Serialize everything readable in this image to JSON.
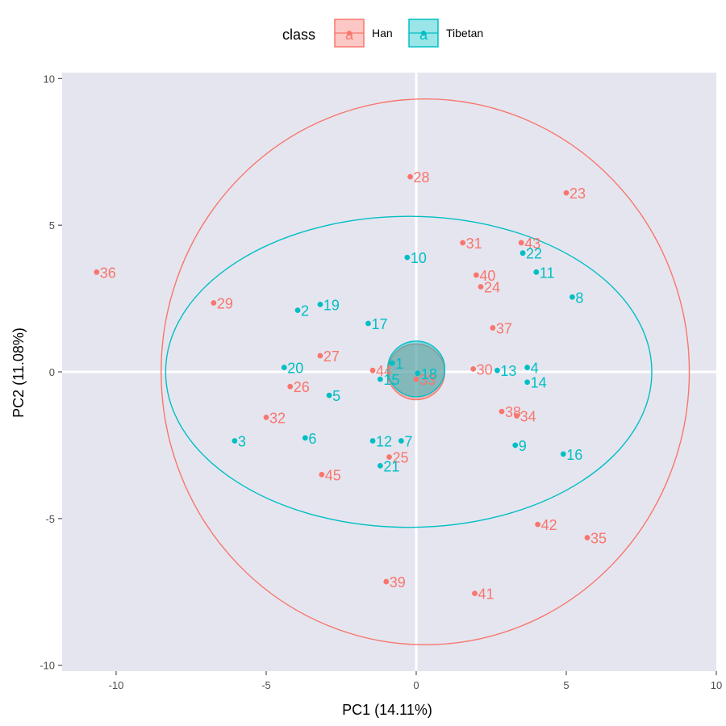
{
  "chart_data": {
    "type": "scatter",
    "xlabel": "PC1 (14.11%)",
    "ylabel": "PC2 (11.08%)",
    "xlim": [
      -11.8,
      10
    ],
    "ylim": [
      -10.2,
      10.2
    ],
    "x_ticks": [
      -10,
      -5,
      0,
      5,
      10
    ],
    "y_ticks": [
      -10,
      -5,
      0,
      5,
      10
    ],
    "x_tick_labels": [
      "-10",
      "-5",
      "0",
      "5",
      "10"
    ],
    "y_tick_labels": [
      "-10",
      "-5",
      "0",
      "5",
      "10"
    ],
    "grid": false,
    "zero_lines": true,
    "legend": {
      "title": "class",
      "position": "top",
      "key_glyph": "a",
      "entries": [
        "Han",
        "Tibetan"
      ]
    },
    "colors": {
      "Han": "#F8766D",
      "Tibetan": "#00BFC4",
      "panel": "#E5E5EF"
    },
    "series": [
      {
        "name": "Han",
        "points": [
          {
            "id": "28",
            "x": -0.2,
            "y": 6.65
          },
          {
            "id": "23",
            "x": 5.0,
            "y": 6.1
          },
          {
            "id": "31",
            "x": 1.55,
            "y": 4.4
          },
          {
            "id": "43",
            "x": 3.5,
            "y": 4.4
          },
          {
            "id": "40",
            "x": 2.0,
            "y": 3.3
          },
          {
            "id": "24",
            "x": 2.15,
            "y": 2.9
          },
          {
            "id": "36",
            "x": -10.65,
            "y": 3.4
          },
          {
            "id": "29",
            "x": -6.75,
            "y": 2.35
          },
          {
            "id": "37",
            "x": 2.55,
            "y": 1.5
          },
          {
            "id": "27",
            "x": -3.2,
            "y": 0.55
          },
          {
            "id": "44",
            "x": -1.45,
            "y": 0.05
          },
          {
            "id": "33",
            "x": 0.0,
            "y": -0.25
          },
          {
            "id": "30",
            "x": 1.9,
            "y": 0.1
          },
          {
            "id": "26",
            "x": -4.2,
            "y": -0.5
          },
          {
            "id": "32",
            "x": -5.0,
            "y": -1.55
          },
          {
            "id": "38",
            "x": 2.85,
            "y": -1.35
          },
          {
            "id": "34",
            "x": 3.35,
            "y": -1.5
          },
          {
            "id": "25",
            "x": -0.9,
            "y": -2.9
          },
          {
            "id": "45",
            "x": -3.15,
            "y": -3.5
          },
          {
            "id": "42",
            "x": 4.05,
            "y": -5.2
          },
          {
            "id": "35",
            "x": 5.7,
            "y": -5.65
          },
          {
            "id": "39",
            "x": -1.0,
            "y": -7.15
          },
          {
            "id": "41",
            "x": 1.95,
            "y": -7.55
          }
        ],
        "ellipse": {
          "cx": 0.3,
          "cy": 0.0,
          "rx": 8.8,
          "ry": 9.3,
          "angle": 0
        }
      },
      {
        "name": "Tibetan",
        "points": [
          {
            "id": "10",
            "x": -0.3,
            "y": 3.9
          },
          {
            "id": "22",
            "x": 3.55,
            "y": 4.05
          },
          {
            "id": "11",
            "x": 4.0,
            "y": 3.4
          },
          {
            "id": "8",
            "x": 5.2,
            "y": 2.55
          },
          {
            "id": "2",
            "x": -3.95,
            "y": 2.1
          },
          {
            "id": "19",
            "x": -3.2,
            "y": 2.3
          },
          {
            "id": "17",
            "x": -1.6,
            "y": 1.65
          },
          {
            "id": "20",
            "x": -4.4,
            "y": 0.15
          },
          {
            "id": "1",
            "x": -0.8,
            "y": 0.3
          },
          {
            "id": "15",
            "x": -1.2,
            "y": -0.25
          },
          {
            "id": "18",
            "x": 0.05,
            "y": -0.05
          },
          {
            "id": "13",
            "x": 2.7,
            "y": 0.05
          },
          {
            "id": "4",
            "x": 3.7,
            "y": 0.15
          },
          {
            "id": "14",
            "x": 3.7,
            "y": -0.35
          },
          {
            "id": "5",
            "x": -2.9,
            "y": -0.8
          },
          {
            "id": "3",
            "x": -6.05,
            "y": -2.35
          },
          {
            "id": "6",
            "x": -3.7,
            "y": -2.25
          },
          {
            "id": "12",
            "x": -1.45,
            "y": -2.35
          },
          {
            "id": "7",
            "x": -0.5,
            "y": -2.35
          },
          {
            "id": "21",
            "x": -1.2,
            "y": -3.2
          },
          {
            "id": "9",
            "x": 3.3,
            "y": -2.5
          },
          {
            "id": "16",
            "x": 4.9,
            "y": -2.8
          }
        ],
        "ellipse": {
          "cx": -0.25,
          "cy": 0.0,
          "rx": 8.1,
          "ry": 5.3,
          "angle": 0
        }
      }
    ],
    "centroid_circles": [
      {
        "name": "Han",
        "cx": 0.0,
        "cy": 0.0,
        "r": 0.95
      },
      {
        "name": "Tibetan",
        "cx": 0.0,
        "cy": 0.1,
        "r": 0.95
      }
    ]
  }
}
